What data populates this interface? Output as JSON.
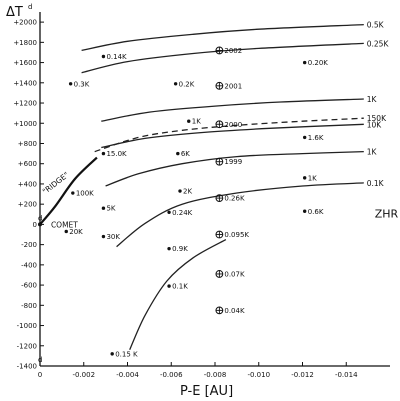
{
  "chart_data": {
    "type": "line",
    "xlabel": "P-E [AU]",
    "ylabel": "ΔT",
    "ylabel_superscript": "d",
    "xlim": [
      0,
      -0.016
    ],
    "ylim": [
      -1400,
      2100
    ],
    "x_ticks": [
      {
        "value": 0,
        "label": "0"
      },
      {
        "value": -0.002,
        "label": "-0.002"
      },
      {
        "value": -0.004,
        "label": "-0.004"
      },
      {
        "value": -0.006,
        "label": "-0.006"
      },
      {
        "value": -0.008,
        "label": "-0.008"
      },
      {
        "value": -0.01,
        "label": "-0.010"
      },
      {
        "value": -0.012,
        "label": "-0.012"
      },
      {
        "value": -0.014,
        "label": "-0.014"
      }
    ],
    "y_ticks": [
      {
        "value": 2000,
        "label": "+2000"
      },
      {
        "value": 1800,
        "label": "+1800"
      },
      {
        "value": 1600,
        "label": "+1600"
      },
      {
        "value": 1400,
        "label": "+1400"
      },
      {
        "value": 1200,
        "label": "+1200"
      },
      {
        "value": 1000,
        "label": "+1000"
      },
      {
        "value": 800,
        "label": "+800"
      },
      {
        "value": 600,
        "label": "+600"
      },
      {
        "value": 400,
        "label": "+400"
      },
      {
        "value": 200,
        "label": "+200"
      },
      {
        "value": 0,
        "label": "0"
      },
      {
        "value": -200,
        "label": "-200"
      },
      {
        "value": -400,
        "label": "-400"
      },
      {
        "value": -600,
        "label": "-600"
      },
      {
        "value": -800,
        "label": "-800"
      },
      {
        "value": -1000,
        "label": "-1000"
      },
      {
        "value": -1200,
        "label": "-1200"
      },
      {
        "value": -1400,
        "label": "-1400"
      }
    ],
    "y_tick_superscripts": [
      {
        "value": 0,
        "label": "d"
      },
      {
        "value": -1400,
        "label": "d"
      }
    ],
    "curves": [
      {
        "label": "0.5K",
        "dashed": false,
        "points": [
          [
            -0.0019,
            1720
          ],
          [
            -0.004,
            1810
          ],
          [
            -0.007,
            1880
          ],
          [
            -0.01,
            1930
          ],
          [
            -0.0148,
            1975
          ]
        ]
      },
      {
        "label": "0.25K",
        "dashed": false,
        "points": [
          [
            -0.0019,
            1500
          ],
          [
            -0.004,
            1610
          ],
          [
            -0.007,
            1690
          ],
          [
            -0.01,
            1740
          ],
          [
            -0.0148,
            1790
          ]
        ]
      },
      {
        "label": "1K",
        "dashed": false,
        "points": [
          [
            -0.0028,
            1020
          ],
          [
            -0.005,
            1110
          ],
          [
            -0.008,
            1170
          ],
          [
            -0.011,
            1210
          ],
          [
            -0.0148,
            1240
          ]
        ]
      },
      {
        "label": "150K",
        "dashed": true,
        "points": [
          [
            -0.0025,
            720
          ],
          [
            -0.0045,
            860
          ],
          [
            -0.0065,
            930
          ],
          [
            -0.009,
            980
          ],
          [
            -0.012,
            1020
          ],
          [
            -0.0148,
            1050
          ]
        ]
      },
      {
        "label": "10K",
        "dashed": false,
        "points": [
          [
            -0.0028,
            760
          ],
          [
            -0.0048,
            850
          ],
          [
            -0.0075,
            910
          ],
          [
            -0.0105,
            950
          ],
          [
            -0.0148,
            990
          ]
        ]
      },
      {
        "label": "1K",
        "dashed": false,
        "points": [
          [
            -0.003,
            380
          ],
          [
            -0.0045,
            500
          ],
          [
            -0.0065,
            600
          ],
          [
            -0.009,
            670
          ],
          [
            -0.012,
            700
          ],
          [
            -0.0148,
            720
          ]
        ]
      },
      {
        "label": "0.1K",
        "dashed": false,
        "points": [
          [
            -0.0035,
            -220
          ],
          [
            -0.0048,
            10
          ],
          [
            -0.0065,
            200
          ],
          [
            -0.009,
            310
          ],
          [
            -0.012,
            380
          ],
          [
            -0.0148,
            410
          ]
        ]
      },
      {
        "label": "",
        "dashed": false,
        "points": [
          [
            -0.0041,
            -1240
          ],
          [
            -0.0048,
            -900
          ],
          [
            -0.0058,
            -560
          ],
          [
            -0.007,
            -330
          ],
          [
            -0.0085,
            -150
          ]
        ]
      }
    ],
    "ridge": {
      "label": "\"RIDGE\"",
      "points": [
        [
          0,
          0
        ],
        [
          -0.0007,
          180
        ],
        [
          -0.0016,
          450
        ],
        [
          -0.0026,
          660
        ]
      ]
    },
    "points": [
      {
        "x": -0.0014,
        "y": 1390,
        "label": "0.3K"
      },
      {
        "x": -0.0029,
        "y": 1660,
        "label": "0.14K"
      },
      {
        "x": -0.0062,
        "y": 1390,
        "label": "0.2K"
      },
      {
        "x": -0.0121,
        "y": 1600,
        "label": "0.20K"
      },
      {
        "x": -0.0068,
        "y": 1020,
        "label": "1K"
      },
      {
        "x": -0.0029,
        "y": 700,
        "label": "15.0K"
      },
      {
        "x": -0.0063,
        "y": 700,
        "label": "6K"
      },
      {
        "x": -0.0121,
        "y": 860,
        "label": "1.6K"
      },
      {
        "x": -0.0015,
        "y": 310,
        "label": "100K"
      },
      {
        "x": -0.0064,
        "y": 330,
        "label": "2K"
      },
      {
        "x": -0.0121,
        "y": 460,
        "label": "1K"
      },
      {
        "x": -0.0029,
        "y": 160,
        "label": "5K"
      },
      {
        "x": -0.0059,
        "y": 120,
        "label": "0.24K"
      },
      {
        "x": -0.0121,
        "y": 130,
        "label": "0.6K"
      },
      {
        "x": -0.0012,
        "y": -70,
        "label": "20K"
      },
      {
        "x": -0.0029,
        "y": -120,
        "label": "30K"
      },
      {
        "x": -0.0059,
        "y": -240,
        "label": "0.9K"
      },
      {
        "x": -0.0059,
        "y": -610,
        "label": "0.1K"
      },
      {
        "x": -0.0033,
        "y": -1280,
        "label": "0.15 K"
      }
    ],
    "markers": [
      {
        "x": -0.0082,
        "y": 1720,
        "label": "2002"
      },
      {
        "x": -0.0082,
        "y": 1370,
        "label": "2001"
      },
      {
        "x": -0.0082,
        "y": 990,
        "label": "2000"
      },
      {
        "x": -0.0082,
        "y": 620,
        "label": "1999"
      },
      {
        "x": -0.0082,
        "y": 260,
        "label": "0.26K"
      },
      {
        "x": -0.0082,
        "y": -100,
        "label": "0.095K"
      },
      {
        "x": -0.0082,
        "y": -490,
        "label": "0.07K"
      },
      {
        "x": -0.0082,
        "y": -850,
        "label": "0.04K"
      }
    ],
    "annotations": [
      {
        "label": "COMET",
        "x": -0.0005,
        "y": -30
      },
      {
        "label": "ZHR",
        "x": -0.0153,
        "y": 70
      }
    ]
  }
}
